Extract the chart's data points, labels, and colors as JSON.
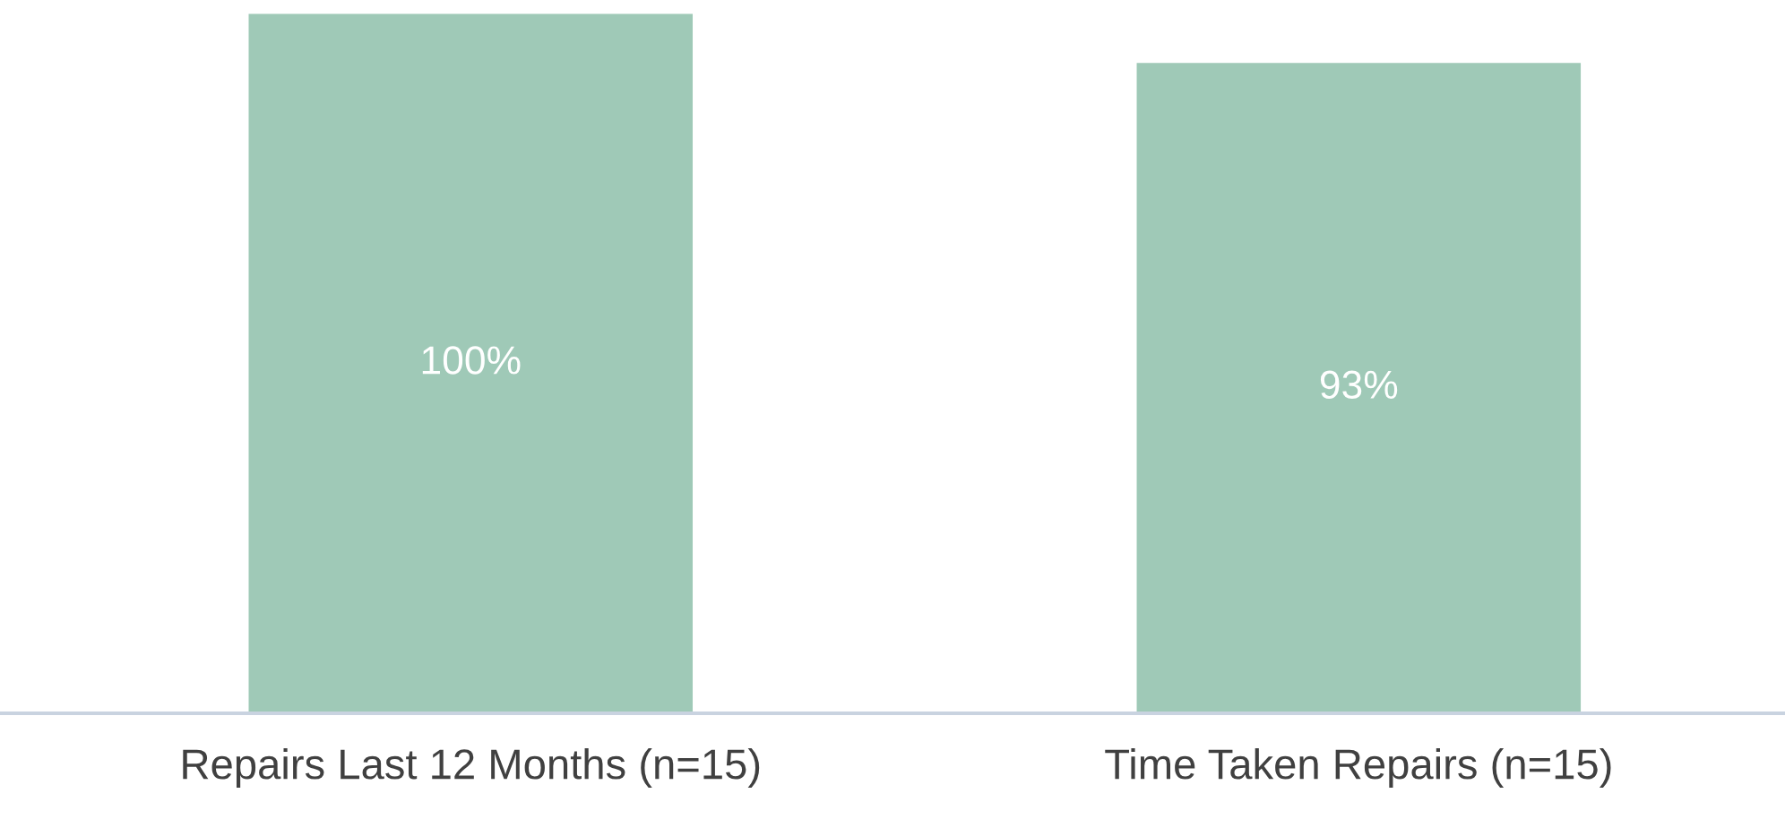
{
  "chart_data": {
    "type": "bar",
    "categories": [
      "Repairs Last 12 Months (n=15)",
      "Time Taken Repairs (n=15)"
    ],
    "values": [
      100,
      93
    ],
    "value_labels": [
      "100%",
      "93%"
    ],
    "color": "#9fc9b7",
    "grid": false,
    "legend": false
  }
}
